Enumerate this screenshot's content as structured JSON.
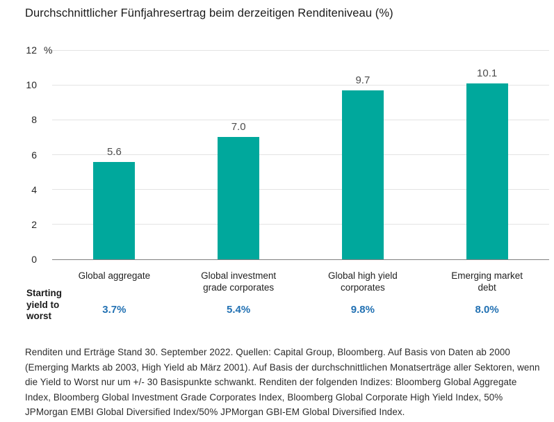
{
  "title": "Durchschnittlicher Fünfjahresertrag beim derzeitigen Renditeniveau (%)",
  "chart_data": {
    "type": "bar",
    "title": "Durchschnittlicher Fünfjahresertrag beim derzeitigen Renditeniveau (%)",
    "categories": [
      "Global aggregate",
      "Global investment grade corporates",
      "Global high yield corporates",
      "Emerging market debt"
    ],
    "values": [
      5.6,
      7.0,
      9.7,
      10.1
    ],
    "value_labels": [
      "5.6",
      "7.0",
      "9.7",
      "10.1"
    ],
    "unit_label": "%",
    "ylim": [
      0,
      12
    ],
    "y_ticks": [
      12,
      10,
      8,
      6,
      4,
      2,
      0
    ],
    "grid": true,
    "legend": "none",
    "bar_color": "#00a89c",
    "starting_yield_row": {
      "label": "Starting yield to worst",
      "values": [
        "3.7%",
        "5.4%",
        "9.8%",
        "8.0%"
      ],
      "value_color": "#2271b3"
    }
  },
  "footer": "Renditen und Erträge Stand 30. September 2022. Quellen: Capital Group, Bloomberg. Auf Basis von Daten ab 2000 (Emerging Markts ab 2003, High Yield ab März 2001). Auf Basis der durchschnittlichen Monatserträge aller Sektoren, wenn die Yield to Worst nur um +/- 30 Basispunkte schwankt. Renditen der folgenden Indizes: Bloomberg Global Aggregate Index, Bloomberg Global Investment Grade Corporates Index, Bloomberg Global Corporate High Yield Index, 50% JPMorgan EMBI Global Diversified Index/50% JPMorgan GBI-EM Global Diversified Index."
}
